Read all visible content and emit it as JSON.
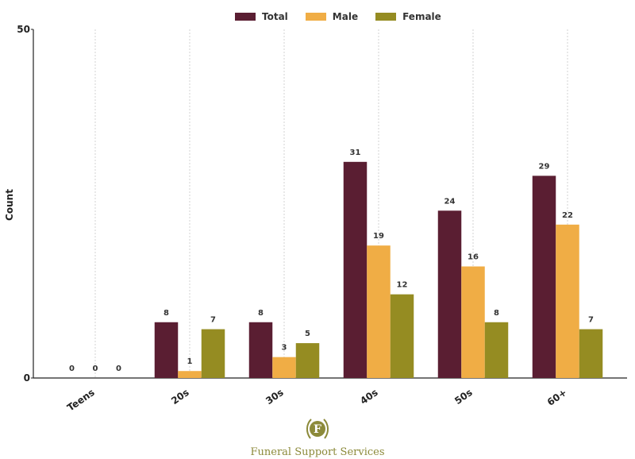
{
  "chart_data": {
    "type": "bar",
    "categories": [
      "Teens",
      "20s",
      "30s",
      "40s",
      "50s",
      "60+"
    ],
    "series": [
      {
        "name": "Total",
        "color": "#5a1e32",
        "values": [
          0,
          8,
          8,
          31,
          24,
          29
        ]
      },
      {
        "name": "Male",
        "color": "#f0ad45",
        "values": [
          0,
          1,
          3,
          19,
          16,
          22
        ]
      },
      {
        "name": "Female",
        "color": "#958c22",
        "values": [
          0,
          7,
          5,
          12,
          8,
          7
        ]
      }
    ],
    "ylabel": "Count",
    "xlabel": "",
    "ylim": [
      0,
      50
    ],
    "y_ticks": [
      "0",
      "50"
    ],
    "grid": "vertical dotted",
    "legend": "top-center"
  },
  "branding": {
    "logo_letter": "F",
    "name": "Funeral Support Services",
    "color": "#8c8a3a"
  }
}
